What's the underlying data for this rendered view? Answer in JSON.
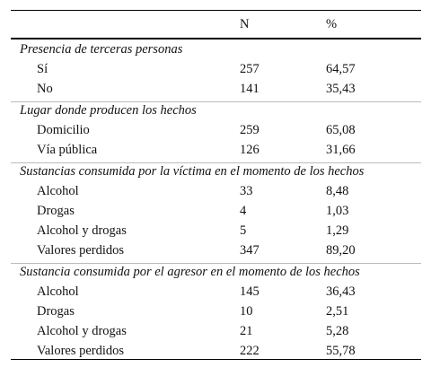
{
  "header": {
    "n": "N",
    "pct": "%"
  },
  "sections": [
    {
      "title": "Presencia de terceras personas",
      "rows": [
        [
          "Sí",
          "257",
          "64,57"
        ],
        [
          "No",
          "141",
          "35,43"
        ]
      ]
    },
    {
      "title": "Lugar donde producen los hechos",
      "rows": [
        [
          "Domicilio",
          "259",
          "65,08"
        ],
        [
          "Vía pública",
          "126",
          "31,66"
        ]
      ]
    },
    {
      "title": "Sustancias consumida por la víctima en el momento de los hechos",
      "rows": [
        [
          "Alcohol",
          "33",
          "8,48"
        ],
        [
          "Drogas",
          "4",
          "1,03"
        ],
        [
          "Alcohol y drogas",
          "5",
          "1,29"
        ],
        [
          "Valores perdidos",
          "347",
          "89,20"
        ]
      ]
    },
    {
      "title": "Sustancia consumida por el agresor en el momento de los hechos",
      "rows": [
        [
          "Alcohol",
          "145",
          "36,43"
        ],
        [
          "Drogas",
          "10",
          "2,51"
        ],
        [
          "Alcohol y drogas",
          "21",
          "5,28"
        ],
        [
          "Valores perdidos",
          "222",
          "55,78"
        ]
      ]
    }
  ]
}
